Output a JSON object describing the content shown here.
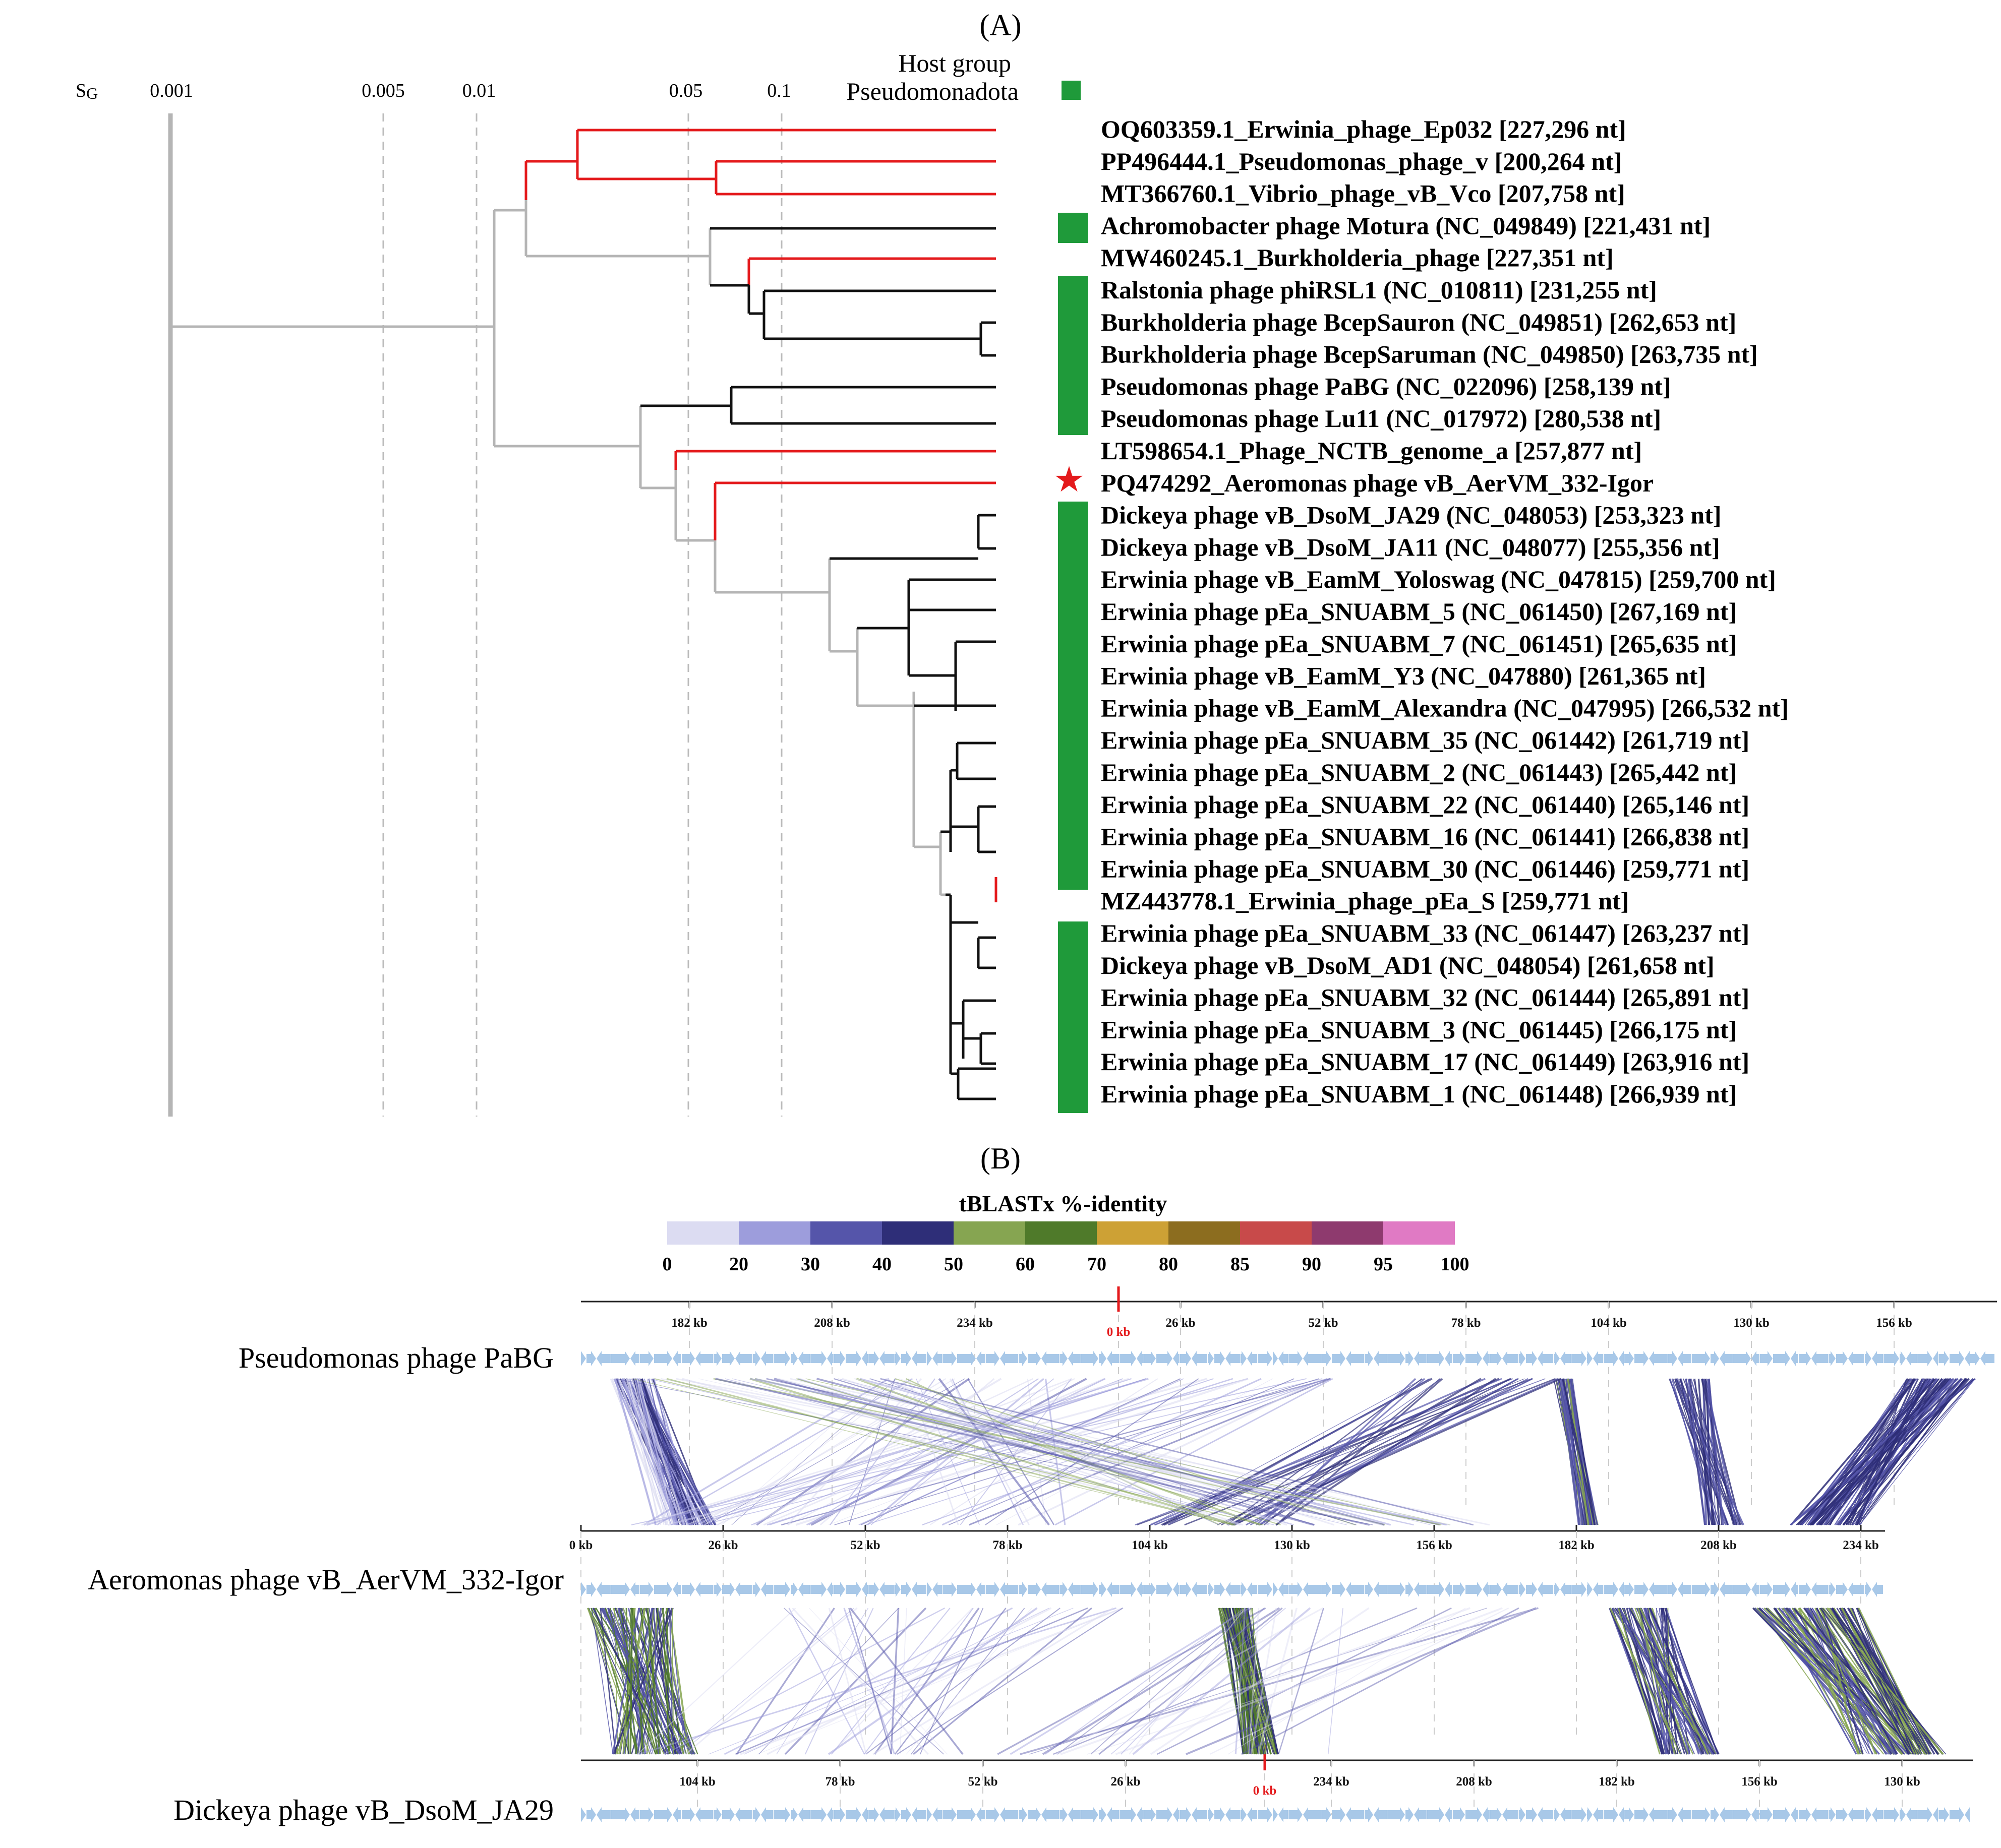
{
  "panel_a": {
    "label": "(A)",
    "sg_label": "S",
    "sg_subscript": "G",
    "scale_ticks": [
      "0.001",
      "0.005",
      "0.01",
      "0.05",
      "0.1"
    ],
    "host_group_title": "Host group",
    "host_group_name": "Pseudomonadota",
    "host_color": "#1f9a3a",
    "highlight_color": "#e41a1c",
    "leaves": [
      {
        "text": "OQ603359.1_Erwinia_phage_Ep032 [227,296 nt]"
      },
      {
        "text": "PP496444.1_Pseudomonas_phage_v [200,264 nt]"
      },
      {
        "text": "MT366760.1_Vibrio_phage_vB_Vco [207,758 nt]"
      },
      {
        "text": "Achromobacter phage Motura (NC_049849) [221,431 nt]"
      },
      {
        "text": "MW460245.1_Burkholderia_phage [227,351 nt]"
      },
      {
        "text": "Ralstonia phage phiRSL1 (NC_010811) [231,255 nt]"
      },
      {
        "text": "Burkholderia phage BcepSauron (NC_049851) [262,653 nt]"
      },
      {
        "text": "Burkholderia phage BcepSaruman (NC_049850) [263,735 nt]"
      },
      {
        "text": "Pseudomonas phage PaBG (NC_022096) [258,139 nt]"
      },
      {
        "text": "Pseudomonas phage Lu11 (NC_017972) [280,538 nt]"
      },
      {
        "text": "LT598654.1_Phage_NCTB_genome_a [257,877 nt]"
      },
      {
        "text": "PQ474292_Aeromonas phage vB_AerVM_332-Igor"
      },
      {
        "text": "Dickeya phage vB_DsoM_JA29 (NC_048053) [253,323 nt]"
      },
      {
        "text": "Dickeya phage vB_DsoM_JA11 (NC_048077) [255,356 nt]"
      },
      {
        "text": "Erwinia phage vB_EamM_Yoloswag (NC_047815) [259,700 nt]"
      },
      {
        "text": "Erwinia phage pEa_SNUABM_5 (NC_061450) [267,169 nt]"
      },
      {
        "text": "Erwinia phage pEa_SNUABM_7 (NC_061451) [265,635 nt]"
      },
      {
        "text": "Erwinia phage vB_EamM_Y3 (NC_047880) [261,365 nt]"
      },
      {
        "text": "Erwinia phage vB_EamM_Alexandra (NC_047995) [266,532 nt]"
      },
      {
        "text": "Erwinia phage pEa_SNUABM_35 (NC_061442) [261,719 nt]"
      },
      {
        "text": "Erwinia phage pEa_SNUABM_2 (NC_061443) [265,442 nt]"
      },
      {
        "text": "Erwinia phage pEa_SNUABM_22 (NC_061440) [265,146 nt]"
      },
      {
        "text": "Erwinia phage pEa_SNUABM_16 (NC_061441) [266,838 nt]"
      },
      {
        "text": "Erwinia phage pEa_SNUABM_30 (NC_061446) [259,771 nt]"
      },
      {
        "text": "MZ443778.1_Erwinia_phage_pEa_S [259,771 nt]"
      },
      {
        "text": "Erwinia phage pEa_SNUABM_33 (NC_061447) [263,237 nt]"
      },
      {
        "text": "Dickeya phage vB_DsoM_AD1 (NC_048054) [261,658 nt]"
      },
      {
        "text": "Erwinia phage pEa_SNUABM_32 (NC_061444) [265,891 nt]"
      },
      {
        "text": "Erwinia phage pEa_SNUABM_3 (NC_061445) [266,175 nt]"
      },
      {
        "text": "Erwinia phage pEa_SNUABM_17 (NC_061449) [263,916 nt]"
      },
      {
        "text": "Erwinia phage pEa_SNUABM_1 (NC_061448) [266,939 nt]"
      }
    ],
    "query_marker": "★"
  },
  "panel_b": {
    "label": "(B)",
    "legend_title": "tBLASTx %-identity",
    "legend_ticks": [
      "0",
      "20",
      "30",
      "40",
      "50",
      "60",
      "70",
      "80",
      "85",
      "90",
      "95",
      "100"
    ],
    "legend_colors": [
      "#dcdcf2",
      "#9d9ddc",
      "#5555aa",
      "#2e2e78",
      "#86a551",
      "#4f7a2a",
      "#cda135",
      "#8c6d1f",
      "#c84a4a",
      "#8e3a6e",
      "#e07ac4"
    ],
    "gene_color": "#a8c8e8",
    "genomes": [
      {
        "name": "Pseudomonas phage PaBG",
        "ticks": [
          "182 kb",
          "208 kb",
          "234 kb",
          "0 kb",
          "26 kb",
          "52 kb",
          "78 kb",
          "104 kb",
          "130 kb",
          "156 kb"
        ],
        "origin": "0 kb"
      },
      {
        "name": "Aeromonas phage vB_AerVM_332-Igor",
        "ticks": [
          "0 kb",
          "26 kb",
          "52 kb",
          "78 kb",
          "104 kb",
          "130 kb",
          "156 kb",
          "182 kb",
          "208 kb",
          "234 kb"
        ]
      },
      {
        "name": "Dickeya phage vB_DsoM_JA29",
        "ticks": [
          "104 kb",
          "78 kb",
          "52 kb",
          "26 kb",
          "0 kb",
          "234 kb",
          "208 kb",
          "182 kb",
          "156 kb",
          "130 kb"
        ],
        "origin": "0 kb"
      }
    ]
  }
}
